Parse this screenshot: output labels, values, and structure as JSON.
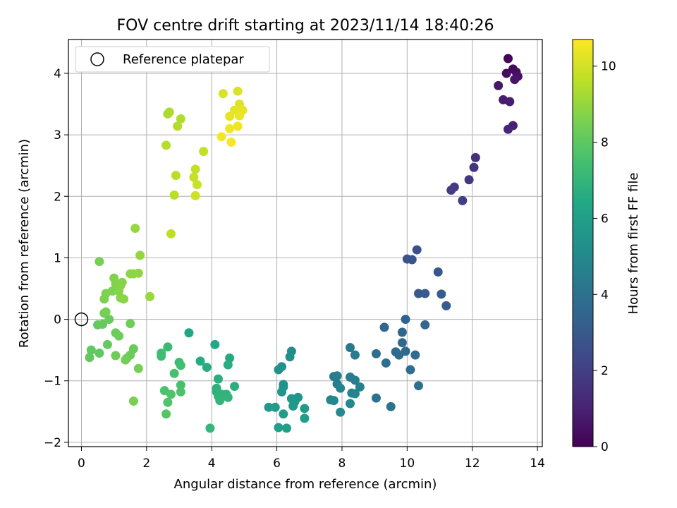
{
  "chart_data": {
    "type": "scatter",
    "title": "FOV centre drift starting at 2023/11/14 18:40:26",
    "xlabel": "Angular distance from reference (arcmin)",
    "ylabel": "Rotation from reference (arcmin)",
    "xlim": [
      -0.4,
      14.15
    ],
    "ylim": [
      -2.07,
      4.55
    ],
    "xticks": [
      0,
      2,
      4,
      6,
      8,
      10,
      12,
      14
    ],
    "xtick_labels": [
      "0",
      "2",
      "4",
      "6",
      "8",
      "10",
      "12",
      "14"
    ],
    "yticks": [
      -2,
      -1,
      0,
      1,
      2,
      3,
      4
    ],
    "ytick_labels": [
      "−2",
      "−1",
      "0",
      "1",
      "2",
      "3",
      "4"
    ],
    "grid": true,
    "legend": {
      "placement": "top-left",
      "entries": [
        "Reference platepar"
      ]
    },
    "reference_point": {
      "x": 0,
      "y": 0,
      "marker": "open-circle"
    },
    "colorbar": {
      "label": "Hours from first FF file",
      "colormap": "viridis",
      "range": [
        0,
        10.7
      ],
      "ticks": [
        0,
        2,
        4,
        6,
        8,
        10
      ],
      "tick_labels": [
        "0",
        "2",
        "4",
        "6",
        "8",
        "10"
      ]
    },
    "points": [
      [
        13.1,
        4.24,
        0.1
      ],
      [
        13.25,
        4.07,
        0.2
      ],
      [
        13.05,
        4.0,
        0.3
      ],
      [
        13.35,
        4.02,
        0.4
      ],
      [
        13.4,
        3.95,
        0.5
      ],
      [
        13.3,
        3.9,
        0.6
      ],
      [
        12.8,
        3.8,
        0.7
      ],
      [
        12.95,
        3.57,
        0.8
      ],
      [
        13.15,
        3.54,
        0.9
      ],
      [
        13.25,
        3.15,
        1.0
      ],
      [
        13.1,
        3.09,
        1.1
      ],
      [
        12.1,
        2.63,
        1.5
      ],
      [
        12.05,
        2.47,
        1.6
      ],
      [
        11.9,
        2.27,
        1.7
      ],
      [
        11.45,
        2.15,
        1.8
      ],
      [
        11.35,
        2.1,
        1.9
      ],
      [
        11.7,
        1.93,
        2.0
      ],
      [
        10.3,
        1.13,
        2.6
      ],
      [
        10.0,
        0.98,
        2.7
      ],
      [
        10.15,
        0.97,
        2.75
      ],
      [
        10.95,
        0.77,
        2.85
      ],
      [
        10.35,
        0.42,
        3.0
      ],
      [
        10.55,
        0.42,
        3.05
      ],
      [
        11.05,
        0.41,
        3.1
      ],
      [
        11.2,
        0.22,
        3.15
      ],
      [
        9.95,
        0.0,
        3.4
      ],
      [
        10.55,
        -0.09,
        3.45
      ],
      [
        9.3,
        -0.13,
        3.5
      ],
      [
        9.85,
        -0.21,
        3.55
      ],
      [
        9.85,
        -0.38,
        3.6
      ],
      [
        9.95,
        -0.52,
        3.65
      ],
      [
        9.65,
        -0.53,
        3.7
      ],
      [
        9.75,
        -0.58,
        3.72
      ],
      [
        10.25,
        -0.58,
        3.75
      ],
      [
        9.05,
        -0.56,
        3.8
      ],
      [
        9.35,
        -0.71,
        3.85
      ],
      [
        10.1,
        -0.82,
        3.9
      ],
      [
        10.35,
        -1.08,
        3.95
      ],
      [
        9.05,
        -1.28,
        4.0
      ],
      [
        9.5,
        -1.42,
        4.05
      ],
      [
        8.25,
        -0.46,
        4.3
      ],
      [
        8.4,
        -0.58,
        4.35
      ],
      [
        8.25,
        -0.94,
        4.4
      ],
      [
        7.75,
        -0.93,
        4.45
      ],
      [
        7.85,
        -0.92,
        4.5
      ],
      [
        8.4,
        -0.99,
        4.55
      ],
      [
        7.85,
        -1.05,
        4.6
      ],
      [
        8.55,
        -1.1,
        4.65
      ],
      [
        7.95,
        -1.12,
        4.7
      ],
      [
        8.3,
        -1.2,
        4.75
      ],
      [
        8.4,
        -1.21,
        4.8
      ],
      [
        7.65,
        -1.31,
        4.85
      ],
      [
        7.75,
        -1.32,
        4.9
      ],
      [
        8.25,
        -1.37,
        4.95
      ],
      [
        7.95,
        -1.51,
        5.0
      ],
      [
        6.45,
        -0.52,
        5.2
      ],
      [
        6.4,
        -0.61,
        5.25
      ],
      [
        6.15,
        -0.77,
        5.3
      ],
      [
        6.05,
        -0.82,
        5.35
      ],
      [
        6.2,
        -1.06,
        5.4
      ],
      [
        6.2,
        -1.1,
        5.45
      ],
      [
        6.15,
        -1.18,
        5.5
      ],
      [
        6.65,
        -1.27,
        5.55
      ],
      [
        6.45,
        -1.29,
        5.6
      ],
      [
        6.55,
        -1.34,
        5.65
      ],
      [
        6.5,
        -1.41,
        5.7
      ],
      [
        6.85,
        -1.45,
        5.75
      ],
      [
        5.75,
        -1.43,
        5.8
      ],
      [
        5.95,
        -1.43,
        5.85
      ],
      [
        6.2,
        -1.54,
        5.9
      ],
      [
        6.85,
        -1.61,
        5.95
      ],
      [
        6.05,
        -1.76,
        6.0
      ],
      [
        6.3,
        -1.77,
        6.05
      ],
      [
        3.3,
        -0.22,
        6.3
      ],
      [
        4.1,
        -0.41,
        6.4
      ],
      [
        4.55,
        -0.63,
        6.5
      ],
      [
        3.65,
        -0.68,
        6.55
      ],
      [
        4.5,
        -0.74,
        6.6
      ],
      [
        3.85,
        -0.78,
        6.65
      ],
      [
        4.2,
        -0.97,
        6.7
      ],
      [
        4.7,
        -1.09,
        6.75
      ],
      [
        4.15,
        -1.12,
        6.8
      ],
      [
        4.15,
        -1.18,
        6.85
      ],
      [
        4.3,
        -1.22,
        6.9
      ],
      [
        4.45,
        -1.22,
        6.92
      ],
      [
        4.2,
        -1.25,
        6.95
      ],
      [
        4.5,
        -1.27,
        6.97
      ],
      [
        4.25,
        -1.32,
        7.0
      ],
      [
        3.95,
        -1.77,
        7.05
      ],
      [
        2.65,
        -0.45,
        7.25
      ],
      [
        3.0,
        -0.7,
        7.3
      ],
      [
        2.45,
        -0.55,
        7.35
      ],
      [
        2.45,
        -0.6,
        7.4
      ],
      [
        3.05,
        -0.75,
        7.45
      ],
      [
        2.85,
        -0.88,
        7.5
      ],
      [
        3.05,
        -1.07,
        7.55
      ],
      [
        2.55,
        -1.16,
        7.6
      ],
      [
        3.05,
        -1.18,
        7.65
      ],
      [
        2.75,
        -1.22,
        7.7
      ],
      [
        2.65,
        -1.35,
        7.75
      ],
      [
        2.6,
        -1.54,
        7.8
      ],
      [
        0.3,
        -0.5,
        8.0
      ],
      [
        0.55,
        -0.55,
        8.05
      ],
      [
        0.25,
        -0.62,
        8.1
      ],
      [
        0.8,
        -0.41,
        8.15
      ],
      [
        1.6,
        -0.48,
        8.2
      ],
      [
        1.5,
        -0.58,
        8.25
      ],
      [
        1.05,
        -0.59,
        8.3
      ],
      [
        1.4,
        -0.63,
        8.35
      ],
      [
        1.35,
        -0.66,
        8.4
      ],
      [
        1.75,
        -0.8,
        8.45
      ],
      [
        1.6,
        -1.33,
        8.5
      ],
      [
        0.5,
        -0.09,
        8.1
      ],
      [
        0.65,
        -0.08,
        8.15
      ],
      [
        0.85,
        0.0,
        8.2
      ],
      [
        1.05,
        -0.22,
        8.25
      ],
      [
        1.15,
        -0.27,
        8.3
      ],
      [
        1.5,
        -0.07,
        8.35
      ],
      [
        0.7,
        0.1,
        8.4
      ],
      [
        0.75,
        0.12,
        8.45
      ],
      [
        0.55,
        0.94,
        8.5
      ],
      [
        0.7,
        0.33,
        8.55
      ],
      [
        0.75,
        0.42,
        8.6
      ],
      [
        0.95,
        0.46,
        8.62
      ],
      [
        1.0,
        0.67,
        8.65
      ],
      [
        1.05,
        0.58,
        8.68
      ],
      [
        1.2,
        0.55,
        8.7
      ],
      [
        1.15,
        0.46,
        8.72
      ],
      [
        1.25,
        0.6,
        8.75
      ],
      [
        1.2,
        0.35,
        8.78
      ],
      [
        1.3,
        0.33,
        8.8
      ],
      [
        1.5,
        0.74,
        8.85
      ],
      [
        1.6,
        0.74,
        8.88
      ],
      [
        1.75,
        0.75,
        8.9
      ],
      [
        1.8,
        1.04,
        8.95
      ],
      [
        1.65,
        1.48,
        9.0
      ],
      [
        2.1,
        0.37,
        9.05
      ],
      [
        2.65,
        3.34,
        9.3
      ],
      [
        2.7,
        3.37,
        9.35
      ],
      [
        3.05,
        3.26,
        9.4
      ],
      [
        2.95,
        3.14,
        9.45
      ],
      [
        2.6,
        2.83,
        9.5
      ],
      [
        2.9,
        2.34,
        9.55
      ],
      [
        2.85,
        2.02,
        9.6
      ],
      [
        2.75,
        1.39,
        9.65
      ],
      [
        3.75,
        2.73,
        9.7
      ],
      [
        3.5,
        2.44,
        9.75
      ],
      [
        3.45,
        2.31,
        9.8
      ],
      [
        3.55,
        2.19,
        9.85
      ],
      [
        3.5,
        2.01,
        9.9
      ],
      [
        4.35,
        3.67,
        10.1
      ],
      [
        4.8,
        3.71,
        10.15
      ],
      [
        4.85,
        3.5,
        10.2
      ],
      [
        4.7,
        3.4,
        10.25
      ],
      [
        4.95,
        3.4,
        10.3
      ],
      [
        4.55,
        3.3,
        10.35
      ],
      [
        4.85,
        3.31,
        10.4
      ],
      [
        4.8,
        3.14,
        10.45
      ],
      [
        4.55,
        3.1,
        10.5
      ],
      [
        4.3,
        2.97,
        10.55
      ],
      [
        4.6,
        2.88,
        10.6
      ]
    ]
  }
}
